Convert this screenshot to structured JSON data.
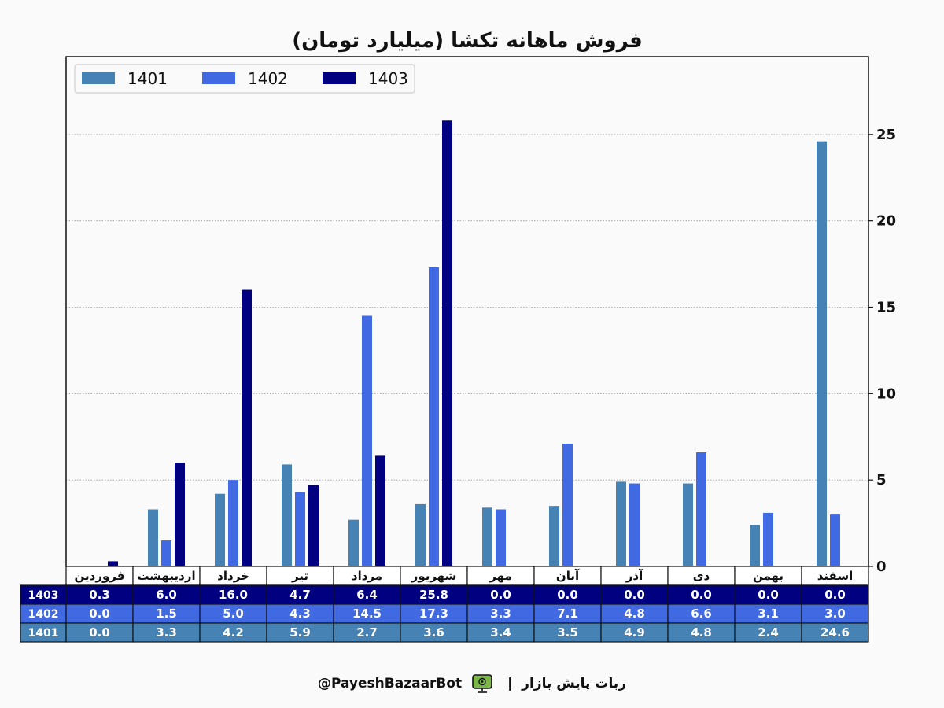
{
  "chart_data": {
    "type": "bar",
    "title": "فروش ماهانه تکشا (میلیارد تومان)",
    "categories": [
      "فروردین",
      "اردیبهشت",
      "خرداد",
      "تیر",
      "مرداد",
      "شهریور",
      "مهر",
      "آبان",
      "آذر",
      "دی",
      "بهمن",
      "اسفند"
    ],
    "series": [
      {
        "name": "1401",
        "color": "#4682b4",
        "values": [
          0.0,
          3.3,
          4.2,
          5.9,
          2.7,
          3.6,
          3.4,
          3.5,
          4.9,
          4.8,
          2.4,
          24.6
        ]
      },
      {
        "name": "1402",
        "color": "#4169e1",
        "values": [
          0.0,
          1.5,
          5.0,
          4.3,
          14.5,
          17.3,
          3.3,
          7.1,
          4.8,
          6.6,
          3.1,
          3.0
        ]
      },
      {
        "name": "1403",
        "color": "#000080",
        "values": [
          0.3,
          6.0,
          16.0,
          4.7,
          6.4,
          25.8,
          0.0,
          0.0,
          0.0,
          0.0,
          0.0,
          0.0
        ]
      }
    ],
    "table_rows": [
      {
        "label": "1403",
        "color": "#000080",
        "cells": [
          "0.3",
          "6.0",
          "16.0",
          "4.7",
          "6.4",
          "25.8",
          "0.0",
          "0.0",
          "0.0",
          "0.0",
          "0.0",
          "0.0"
        ]
      },
      {
        "label": "1402",
        "color": "#4169e1",
        "cells": [
          "0.0",
          "1.5",
          "5.0",
          "4.3",
          "14.5",
          "17.3",
          "3.3",
          "7.1",
          "4.8",
          "6.6",
          "3.1",
          "3.0"
        ]
      },
      {
        "label": "1401",
        "color": "#4682b4",
        "cells": [
          "0.0",
          "3.3",
          "4.2",
          "5.9",
          "2.7",
          "3.6",
          "3.4",
          "3.5",
          "4.9",
          "4.8",
          "2.4",
          "24.6"
        ]
      }
    ],
    "yticks": [
      0,
      5,
      10,
      15,
      20,
      25
    ],
    "ylim": [
      0,
      29.5
    ],
    "y_axis_side": "right",
    "grid": "horizontal-dotted",
    "legend_position": "top-left"
  },
  "footer": {
    "bot_name": "ربات پایش بازار",
    "separator": "|",
    "handle": "@PayeshBazaarBot",
    "icon": "bot-monitor-icon"
  }
}
